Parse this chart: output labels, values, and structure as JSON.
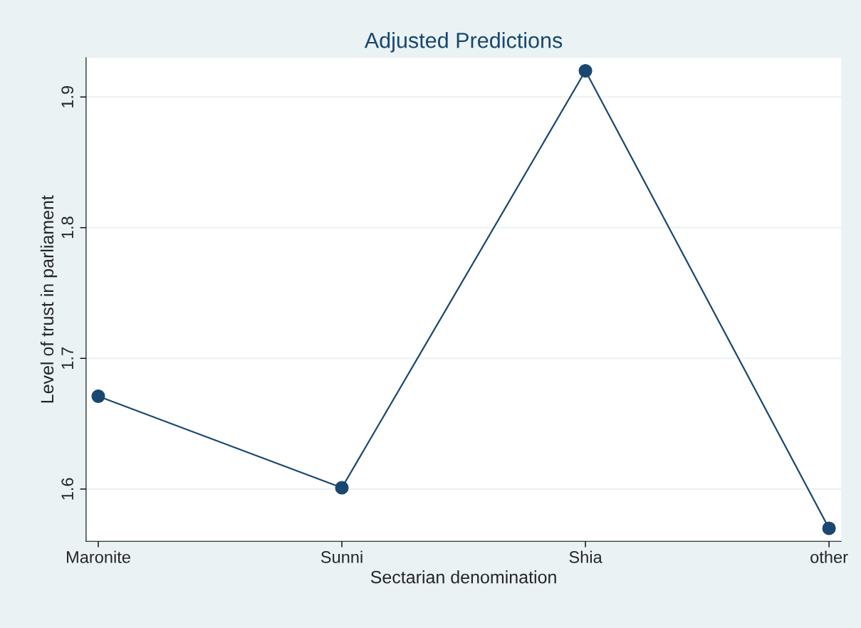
{
  "chart_data": {
    "type": "line",
    "title": "Adjusted Predictions",
    "xlabel": "Sectarian denomination",
    "ylabel": "Level of trust in parliament",
    "categories": [
      "Maronite",
      "Sunni",
      "Shia",
      "other"
    ],
    "series": [
      {
        "color": "#1a476f",
        "values": [
          1.671,
          1.601,
          1.92,
          1.57
        ]
      }
    ],
    "ylim": [
      1.56,
      1.93
    ],
    "yticks": [
      1.6,
      1.7,
      1.8,
      1.9
    ],
    "grid": "y",
    "marker": "circle",
    "line_style": "solid"
  }
}
